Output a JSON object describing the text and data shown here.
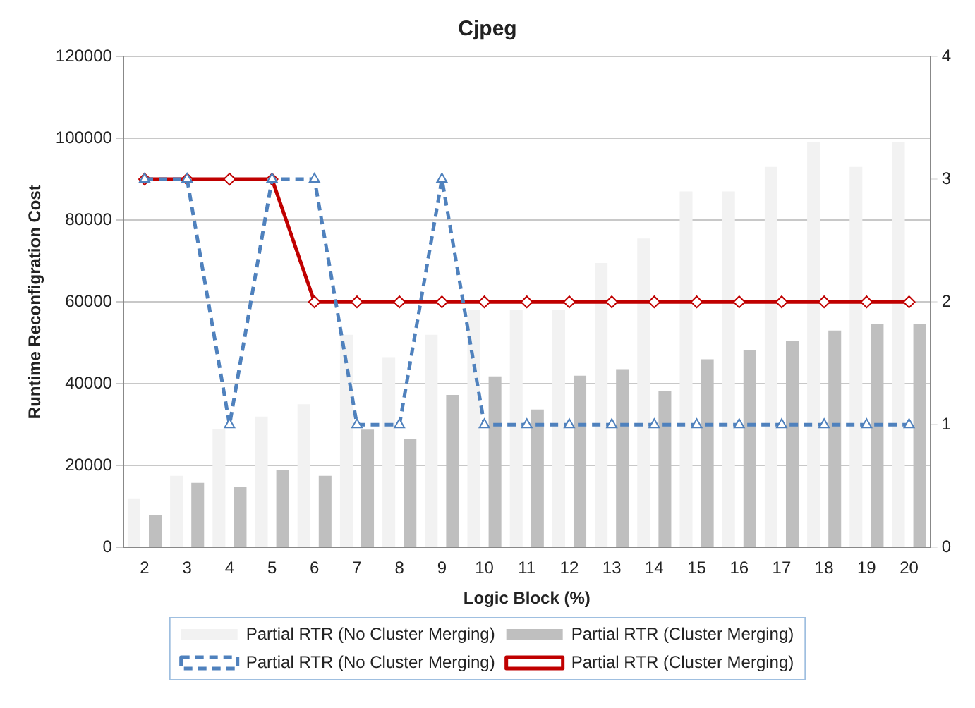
{
  "chart_data": {
    "type": "bar",
    "title": "Cjpeg",
    "xlabel": "Logic Block (%)",
    "ylabel": "Runtime Reconfigration Cost",
    "categories": [
      "2",
      "3",
      "4",
      "5",
      "6",
      "7",
      "8",
      "9",
      "10",
      "11",
      "12",
      "13",
      "14",
      "15",
      "16",
      "17",
      "18",
      "19",
      "20"
    ],
    "series": [
      {
        "name": "Partial RTR (No Cluster Merging)",
        "color": "#f2f2f2",
        "values": [
          12000,
          17500,
          29000,
          32000,
          35000,
          52000,
          46500,
          52000,
          58000,
          58000,
          58000,
          69500,
          75500,
          87000,
          87000,
          93000,
          99000,
          93000,
          99000
        ]
      },
      {
        "name": "Partial RTR (Cluster Merging)",
        "color": "#bfbfbf",
        "values": [
          8000,
          15800,
          14700,
          19000,
          17500,
          28800,
          26500,
          37300,
          41800,
          33700,
          42000,
          43600,
          38300,
          46000,
          48300,
          50500,
          53000,
          54500,
          54500
        ]
      },
      {
        "name": "Partial RTR (No Cluster Merging)",
        "type": "line",
        "axis": "y2",
        "color": "#4f81bd",
        "line_style": "dashed",
        "marker": "triangle",
        "values": [
          3,
          3,
          1,
          3,
          3,
          1,
          1,
          3,
          1,
          1,
          1,
          1,
          1,
          1,
          1,
          1,
          1,
          1,
          1
        ]
      },
      {
        "name": "Partial RTR (Cluster Merging)",
        "type": "line",
        "axis": "y2",
        "color": "#c00000",
        "line_style": "solid",
        "marker": "diamond",
        "values": [
          3,
          3,
          3,
          3,
          2,
          2,
          2,
          2,
          2,
          2,
          2,
          2,
          2,
          2,
          2,
          2,
          2,
          2,
          2
        ]
      }
    ],
    "ylim": [
      0,
      120000
    ],
    "yticks": [
      0,
      20000,
      40000,
      60000,
      80000,
      100000,
      120000
    ],
    "y2lim": [
      0,
      4
    ],
    "y2ticks": [
      0,
      1,
      2,
      3,
      4
    ],
    "grid": "y",
    "legend": "bottom"
  }
}
